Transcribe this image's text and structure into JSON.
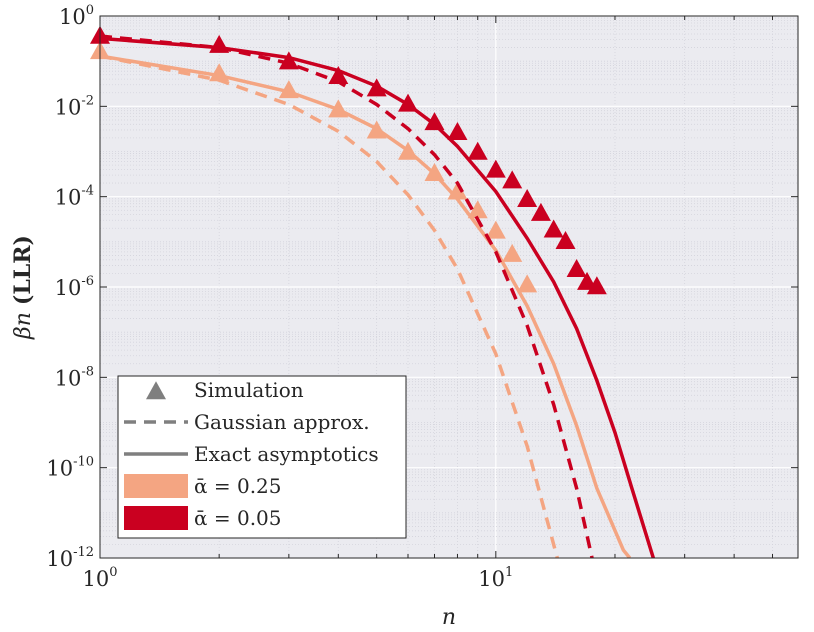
{
  "chart_data": {
    "type": "line",
    "x_scale": "log",
    "y_scale": "log",
    "xlim": [
      1,
      58
    ],
    "ylim": [
      1e-12,
      1
    ],
    "xlabel": "n",
    "ylabel_math": "βn",
    "ylabel_text": "(LLR)",
    "x_ticks": [
      {
        "base": "10",
        "exp": "0",
        "value": 1
      },
      {
        "base": "10",
        "exp": "1",
        "value": 10
      }
    ],
    "y_ticks": [
      {
        "base": "10",
        "exp": "0",
        "value": 1
      },
      {
        "base": "10",
        "exp": "-2",
        "value": 0.01
      },
      {
        "base": "10",
        "exp": "-4",
        "value": 0.0001
      },
      {
        "base": "10",
        "exp": "-6",
        "value": 1e-06
      },
      {
        "base": "10",
        "exp": "-8",
        "value": 1e-08
      },
      {
        "base": "10",
        "exp": "-10",
        "value": 1e-10
      },
      {
        "base": "10",
        "exp": "-12",
        "value": 1e-12
      }
    ],
    "grid": true,
    "minor_grid": true,
    "legend_position": "bottom-left",
    "legend": [
      {
        "label": "Simulation",
        "kind": "marker",
        "color": "#7f7f7f"
      },
      {
        "label": "Gaussian approx.",
        "kind": "dashed",
        "color": "#7f7f7f"
      },
      {
        "label": "Exact asymptotics",
        "kind": "solid",
        "color": "#7f7f7f"
      },
      {
        "label": "ᾱ = 0.25",
        "kind": "patch",
        "color": "#f4a582"
      },
      {
        "label": "ᾱ = 0.05",
        "kind": "patch",
        "color": "#ca0020"
      }
    ],
    "series": [
      {
        "alpha": 0.25,
        "color": "#f4a582",
        "exact": [
          [
            1,
            0.13
          ],
          [
            2,
            0.048
          ],
          [
            3,
            0.021
          ],
          [
            4,
            0.0085
          ],
          [
            5,
            0.0032
          ],
          [
            6,
            0.00105
          ],
          [
            7,
            0.00032
          ],
          [
            8,
            8.8e-05
          ],
          [
            10,
            6.5e-06
          ],
          [
            12,
            3.8e-07
          ],
          [
            14,
            2e-08
          ],
          [
            16,
            8.5e-10
          ],
          [
            18,
            3.5e-11
          ],
          [
            21,
            1.5e-12
          ],
          [
            21.8,
            1e-12
          ]
        ],
        "gaussian": [
          [
            1,
            0.13
          ],
          [
            2,
            0.038
          ],
          [
            3,
            0.011
          ],
          [
            4,
            0.0028
          ],
          [
            5,
            0.0006
          ],
          [
            6,
            0.00011
          ],
          [
            7,
            1.8e-05
          ],
          [
            8,
            2.5e-06
          ],
          [
            10,
            3.3e-08
          ],
          [
            12,
            3e-10
          ],
          [
            13,
            2.2e-11
          ],
          [
            14.3,
            1e-12
          ]
        ],
        "simulation": [
          [
            1,
            0.16
          ],
          [
            2,
            0.052
          ],
          [
            3,
            0.022
          ],
          [
            4,
            0.0082
          ],
          [
            5,
            0.0028
          ],
          [
            6,
            0.00095
          ],
          [
            7,
            0.00032
          ],
          [
            8,
            0.000125
          ],
          [
            9,
            4.8e-05
          ],
          [
            10,
            1.7e-05
          ],
          [
            11,
            5.2e-06
          ],
          [
            12,
            1.1e-06
          ]
        ]
      },
      {
        "alpha": 0.05,
        "color": "#ca0020",
        "exact": [
          [
            1,
            0.32
          ],
          [
            2,
            0.2
          ],
          [
            3,
            0.12
          ],
          [
            4,
            0.062
          ],
          [
            5,
            0.028
          ],
          [
            6,
            0.011
          ],
          [
            7,
            0.004
          ],
          [
            8,
            0.0013
          ],
          [
            10,
            0.00013
          ],
          [
            12,
            1.2e-05
          ],
          [
            14,
            1.3e-06
          ],
          [
            16,
            1.2e-07
          ],
          [
            18,
            8.5e-09
          ],
          [
            20,
            6e-10
          ],
          [
            22,
            3.8e-11
          ],
          [
            25,
            1e-12
          ]
        ],
        "gaussian": [
          [
            1,
            0.36
          ],
          [
            2,
            0.2
          ],
          [
            3,
            0.09
          ],
          [
            4,
            0.035
          ],
          [
            5,
            0.011
          ],
          [
            6,
            0.0032
          ],
          [
            7,
            0.00085
          ],
          [
            8,
            0.0002
          ],
          [
            10,
            6e-06
          ],
          [
            12,
            1.4e-07
          ],
          [
            14,
            2.5e-09
          ],
          [
            16,
            3.5e-11
          ],
          [
            17.5,
            1e-12
          ]
        ],
        "simulation": [
          [
            1,
            0.35
          ],
          [
            2,
            0.22
          ],
          [
            3,
            0.095
          ],
          [
            4,
            0.045
          ],
          [
            5,
            0.024
          ],
          [
            6,
            0.011
          ],
          [
            7,
            0.0043
          ],
          [
            8,
            0.0026
          ],
          [
            9,
            0.00095
          ],
          [
            10,
            0.00038
          ],
          [
            11,
            0.00022
          ],
          [
            12,
            8.5e-05
          ],
          [
            13,
            4.2e-05
          ],
          [
            14,
            1.8e-05
          ],
          [
            15,
            1e-05
          ],
          [
            16,
            2.4e-06
          ],
          [
            17,
            1.25e-06
          ],
          [
            18,
            1e-06
          ]
        ]
      }
    ]
  }
}
